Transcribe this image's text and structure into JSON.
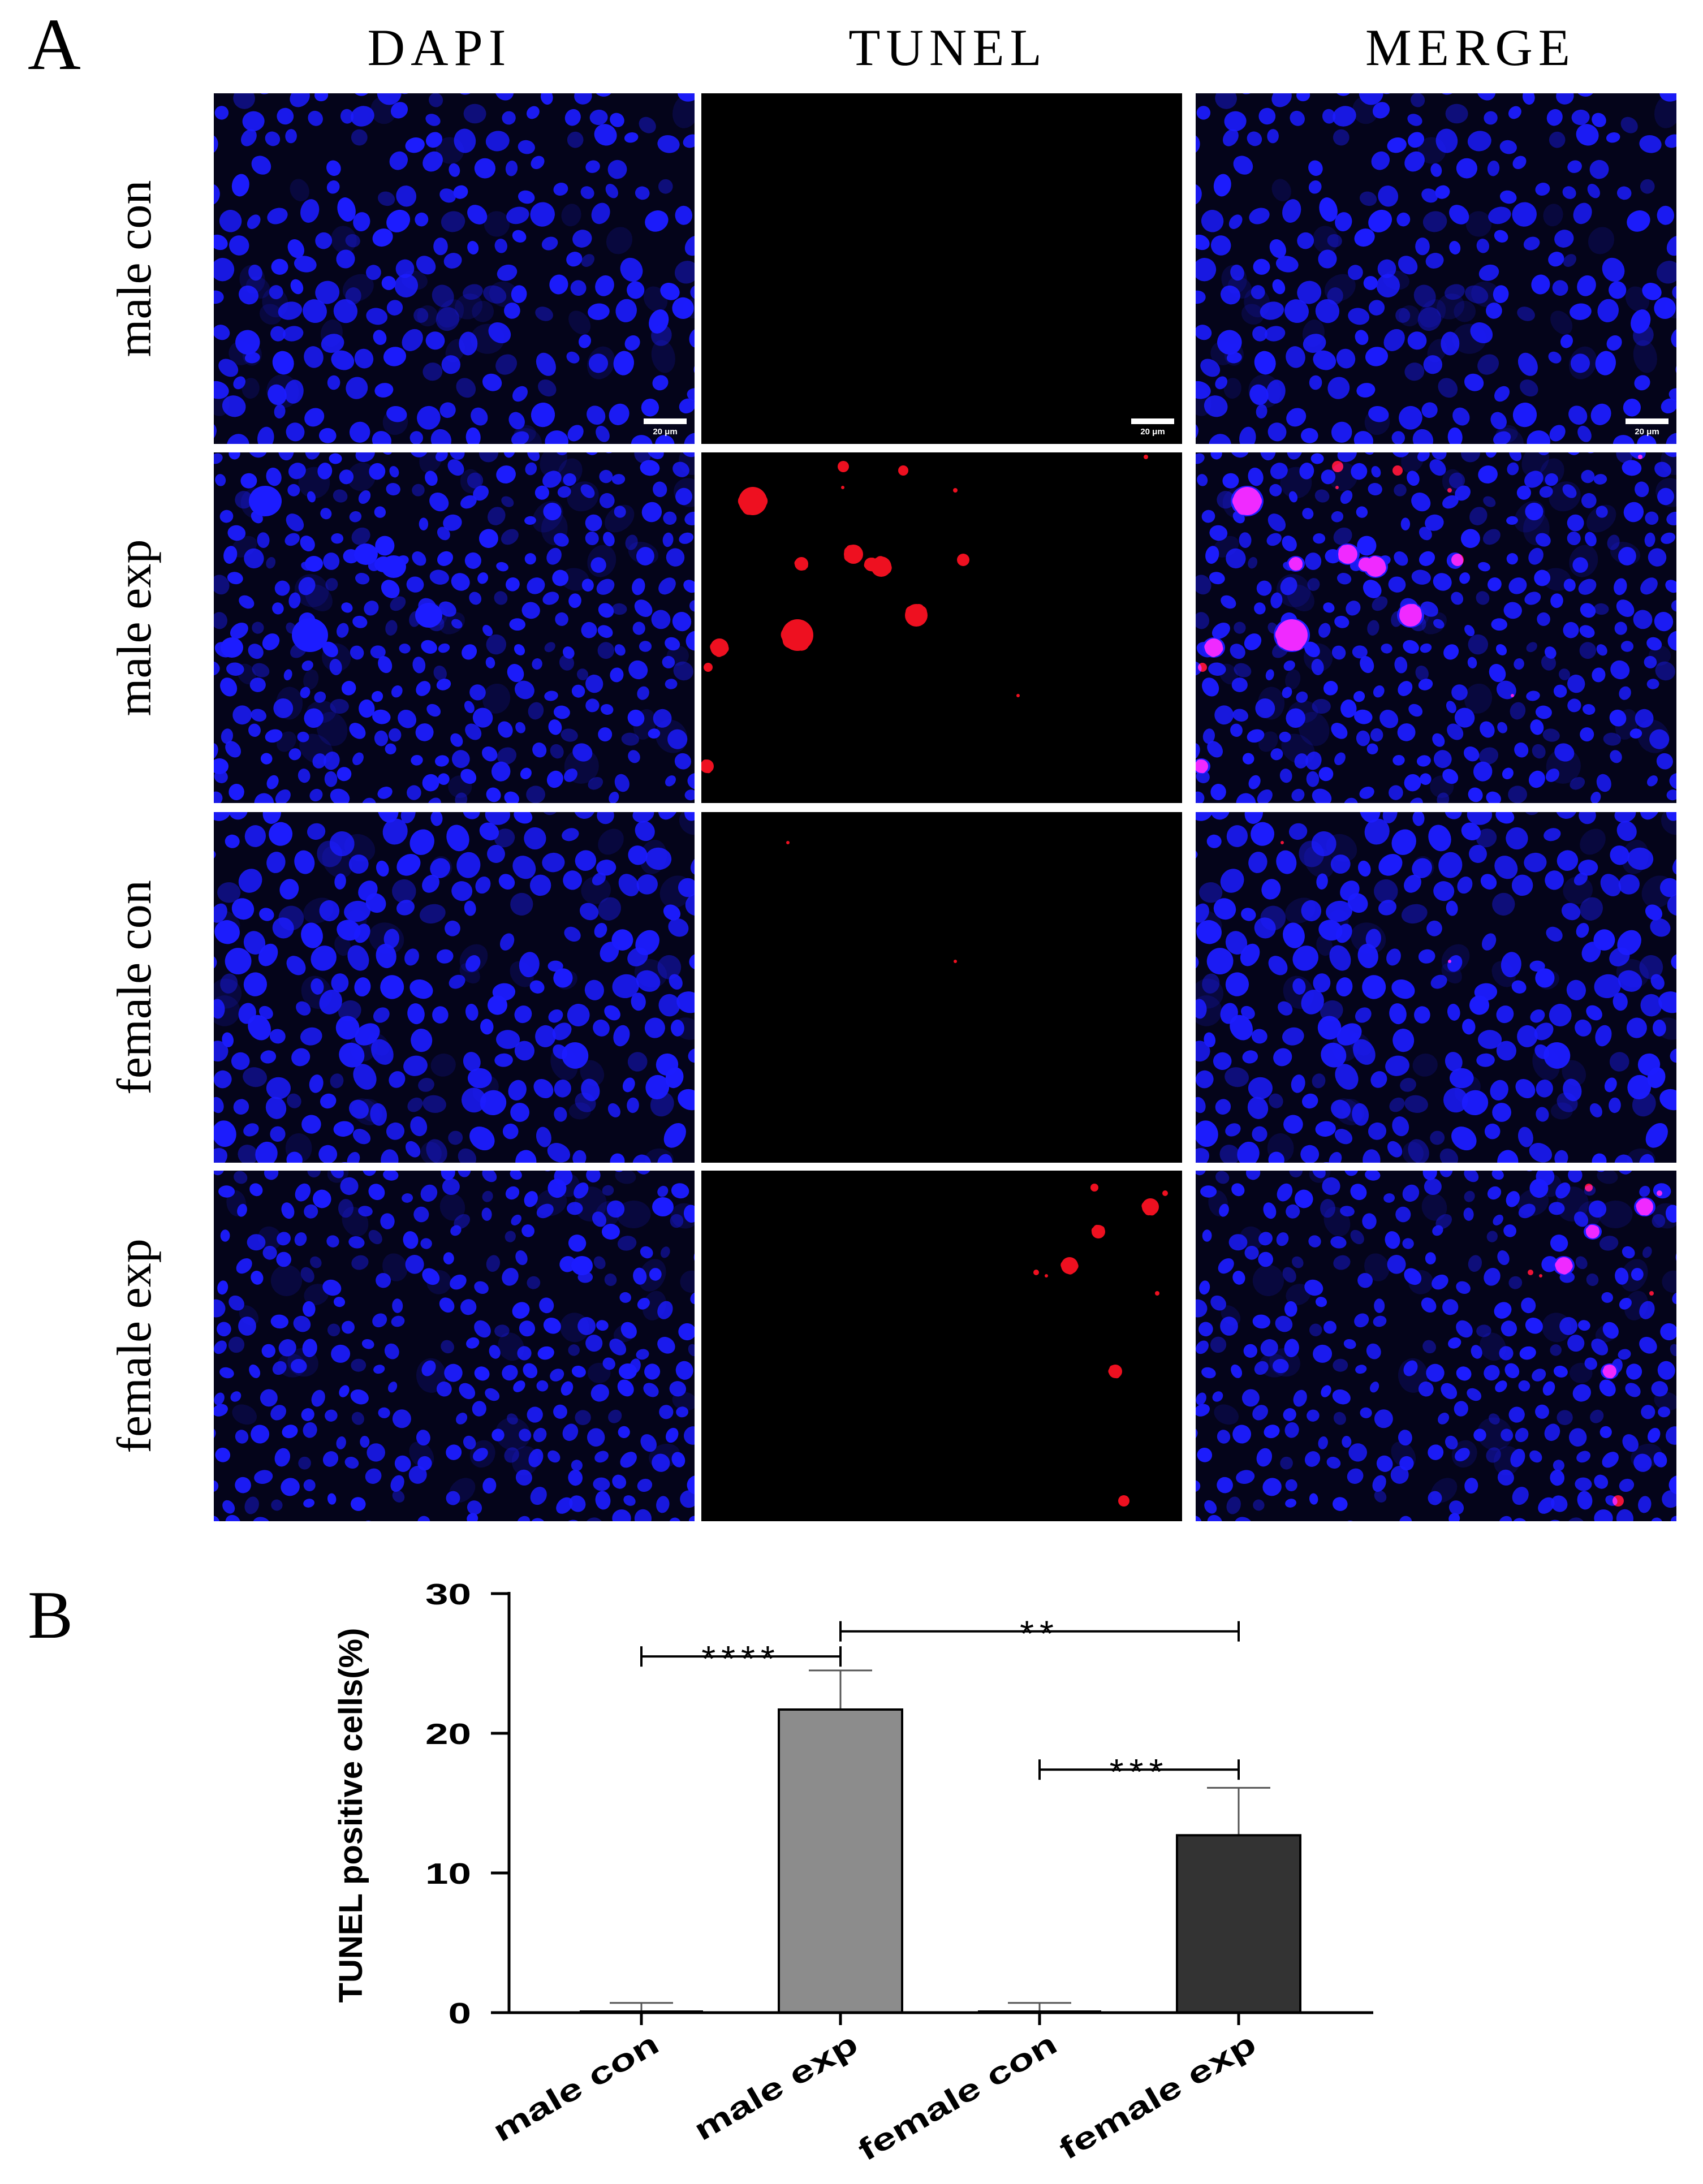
{
  "figure": {
    "panel_a": {
      "label": "A",
      "columns": [
        "DAPI",
        "TUNEL",
        "MERGE"
      ],
      "rows": [
        "male con",
        "male exp",
        "female con",
        "female exp"
      ],
      "scale_bar_label": "20 μm"
    },
    "panel_b": {
      "label": "B"
    }
  },
  "colors": {
    "dapi_stain": "#1c1cff",
    "tunel_stain": "#ee1020",
    "micrograph_background": "#04041a",
    "tunel_background": "#000000"
  },
  "chart_data": {
    "type": "bar",
    "categories": [
      "male con",
      "male exp",
      "female con",
      "female exp"
    ],
    "values": [
      0,
      21.7,
      0,
      12.7
    ],
    "errors": [
      0.7,
      2.8,
      0.7,
      3.4
    ],
    "ylabel": "TUNEL positive cells(%)",
    "ylim": [
      0,
      30
    ],
    "yticks": [
      0,
      10,
      20,
      30
    ],
    "bar_colors": [
      "#ffffff",
      "#8c8c8c",
      "#ffffff",
      "#333333"
    ],
    "grid": false,
    "significance": [
      {
        "from": "male con",
        "to": "male exp",
        "label": "****"
      },
      {
        "from": "male exp",
        "to": "female exp",
        "label": "**"
      },
      {
        "from": "female con",
        "to": "female exp",
        "label": "***"
      }
    ]
  }
}
